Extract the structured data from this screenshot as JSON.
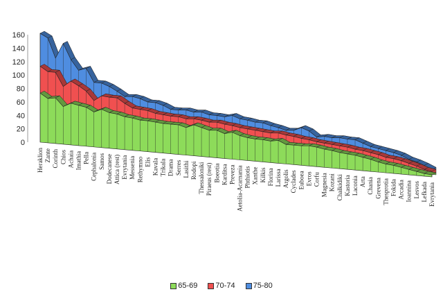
{
  "chart_data": {
    "type": "area",
    "stacked": true,
    "three_d": true,
    "legend_position": "bottom",
    "grid": false,
    "ylim": [
      0,
      160
    ],
    "yticks": [
      0,
      20,
      40,
      60,
      80,
      100,
      120,
      140,
      160
    ],
    "categories": [
      "Heraklion",
      "Zante",
      "Corinth",
      "Chios",
      "Achaia",
      "Imathia",
      "Pella",
      "Cephalonia",
      "Samos",
      "Dodecanese",
      "Attica (rest)",
      "Evrytania",
      "Messenia",
      "Rethymno",
      "Elis",
      "Kavala",
      "Trikala",
      "Drama",
      "Serres",
      "Lasithi",
      "Rodopi",
      "Thessaloniki",
      "Piraeus (rest)",
      "Boeotia",
      "Karditsa",
      "Preveza",
      "Aetolia-Acarnania",
      "Phthiotis",
      "Xanthe",
      "Kilkis",
      "Florina",
      "Larissa",
      "Argolis",
      "Cyclades",
      "Euboea",
      "Evros",
      "Corfu",
      "Magnesia",
      "Kozani",
      "Chalkidiki",
      "Kastoria",
      "Laconia",
      "Arta",
      "Chania",
      "Grevena",
      "Thesprotia",
      "Fokida",
      "Arcadia",
      "Ioannina",
      "Lesvos",
      "Lefkada",
      "Evrytania"
    ],
    "series": [
      {
        "name": "65-69",
        "color": "#8ddb5a",
        "values": [
          73,
          66,
          68,
          56,
          62,
          60,
          58,
          52,
          57,
          53,
          52,
          49,
          48,
          46,
          46,
          45,
          44,
          44,
          44,
          41,
          46,
          43,
          40,
          41,
          37,
          40,
          36,
          34,
          33,
          33,
          32,
          34,
          29,
          29,
          29,
          30,
          29,
          27,
          26,
          24,
          23,
          22,
          20,
          18,
          15,
          13,
          12,
          10,
          8,
          6,
          4,
          3
        ]
      },
      {
        "name": "70-74",
        "color": "#f05050",
        "values": [
          40,
          40,
          38,
          30,
          33,
          29,
          24,
          17,
          20,
          23,
          24,
          20,
          15,
          16,
          15,
          13,
          13,
          12,
          12,
          13,
          9,
          11,
          12,
          12,
          14,
          10,
          12,
          13,
          13,
          12,
          12,
          11,
          14,
          13,
          11,
          9,
          8,
          9,
          9,
          10,
          10,
          9,
          10,
          10,
          11,
          10,
          10,
          10,
          9,
          8,
          6,
          5
        ]
      },
      {
        "name": "75-80",
        "color": "#4f8de0",
        "values": [
          49,
          50,
          21,
          64,
          32,
          23,
          34,
          27,
          19,
          16,
          10,
          10,
          17,
          16,
          13,
          16,
          14,
          10,
          10,
          13,
          10,
          12,
          11,
          10,
          11,
          15,
          13,
          13,
          12,
          13,
          11,
          8,
          7,
          9,
          16,
          13,
          7,
          10,
          10,
          12,
          12,
          14,
          11,
          9,
          9,
          10,
          9,
          8,
          6,
          6,
          6,
          3
        ]
      }
    ]
  }
}
